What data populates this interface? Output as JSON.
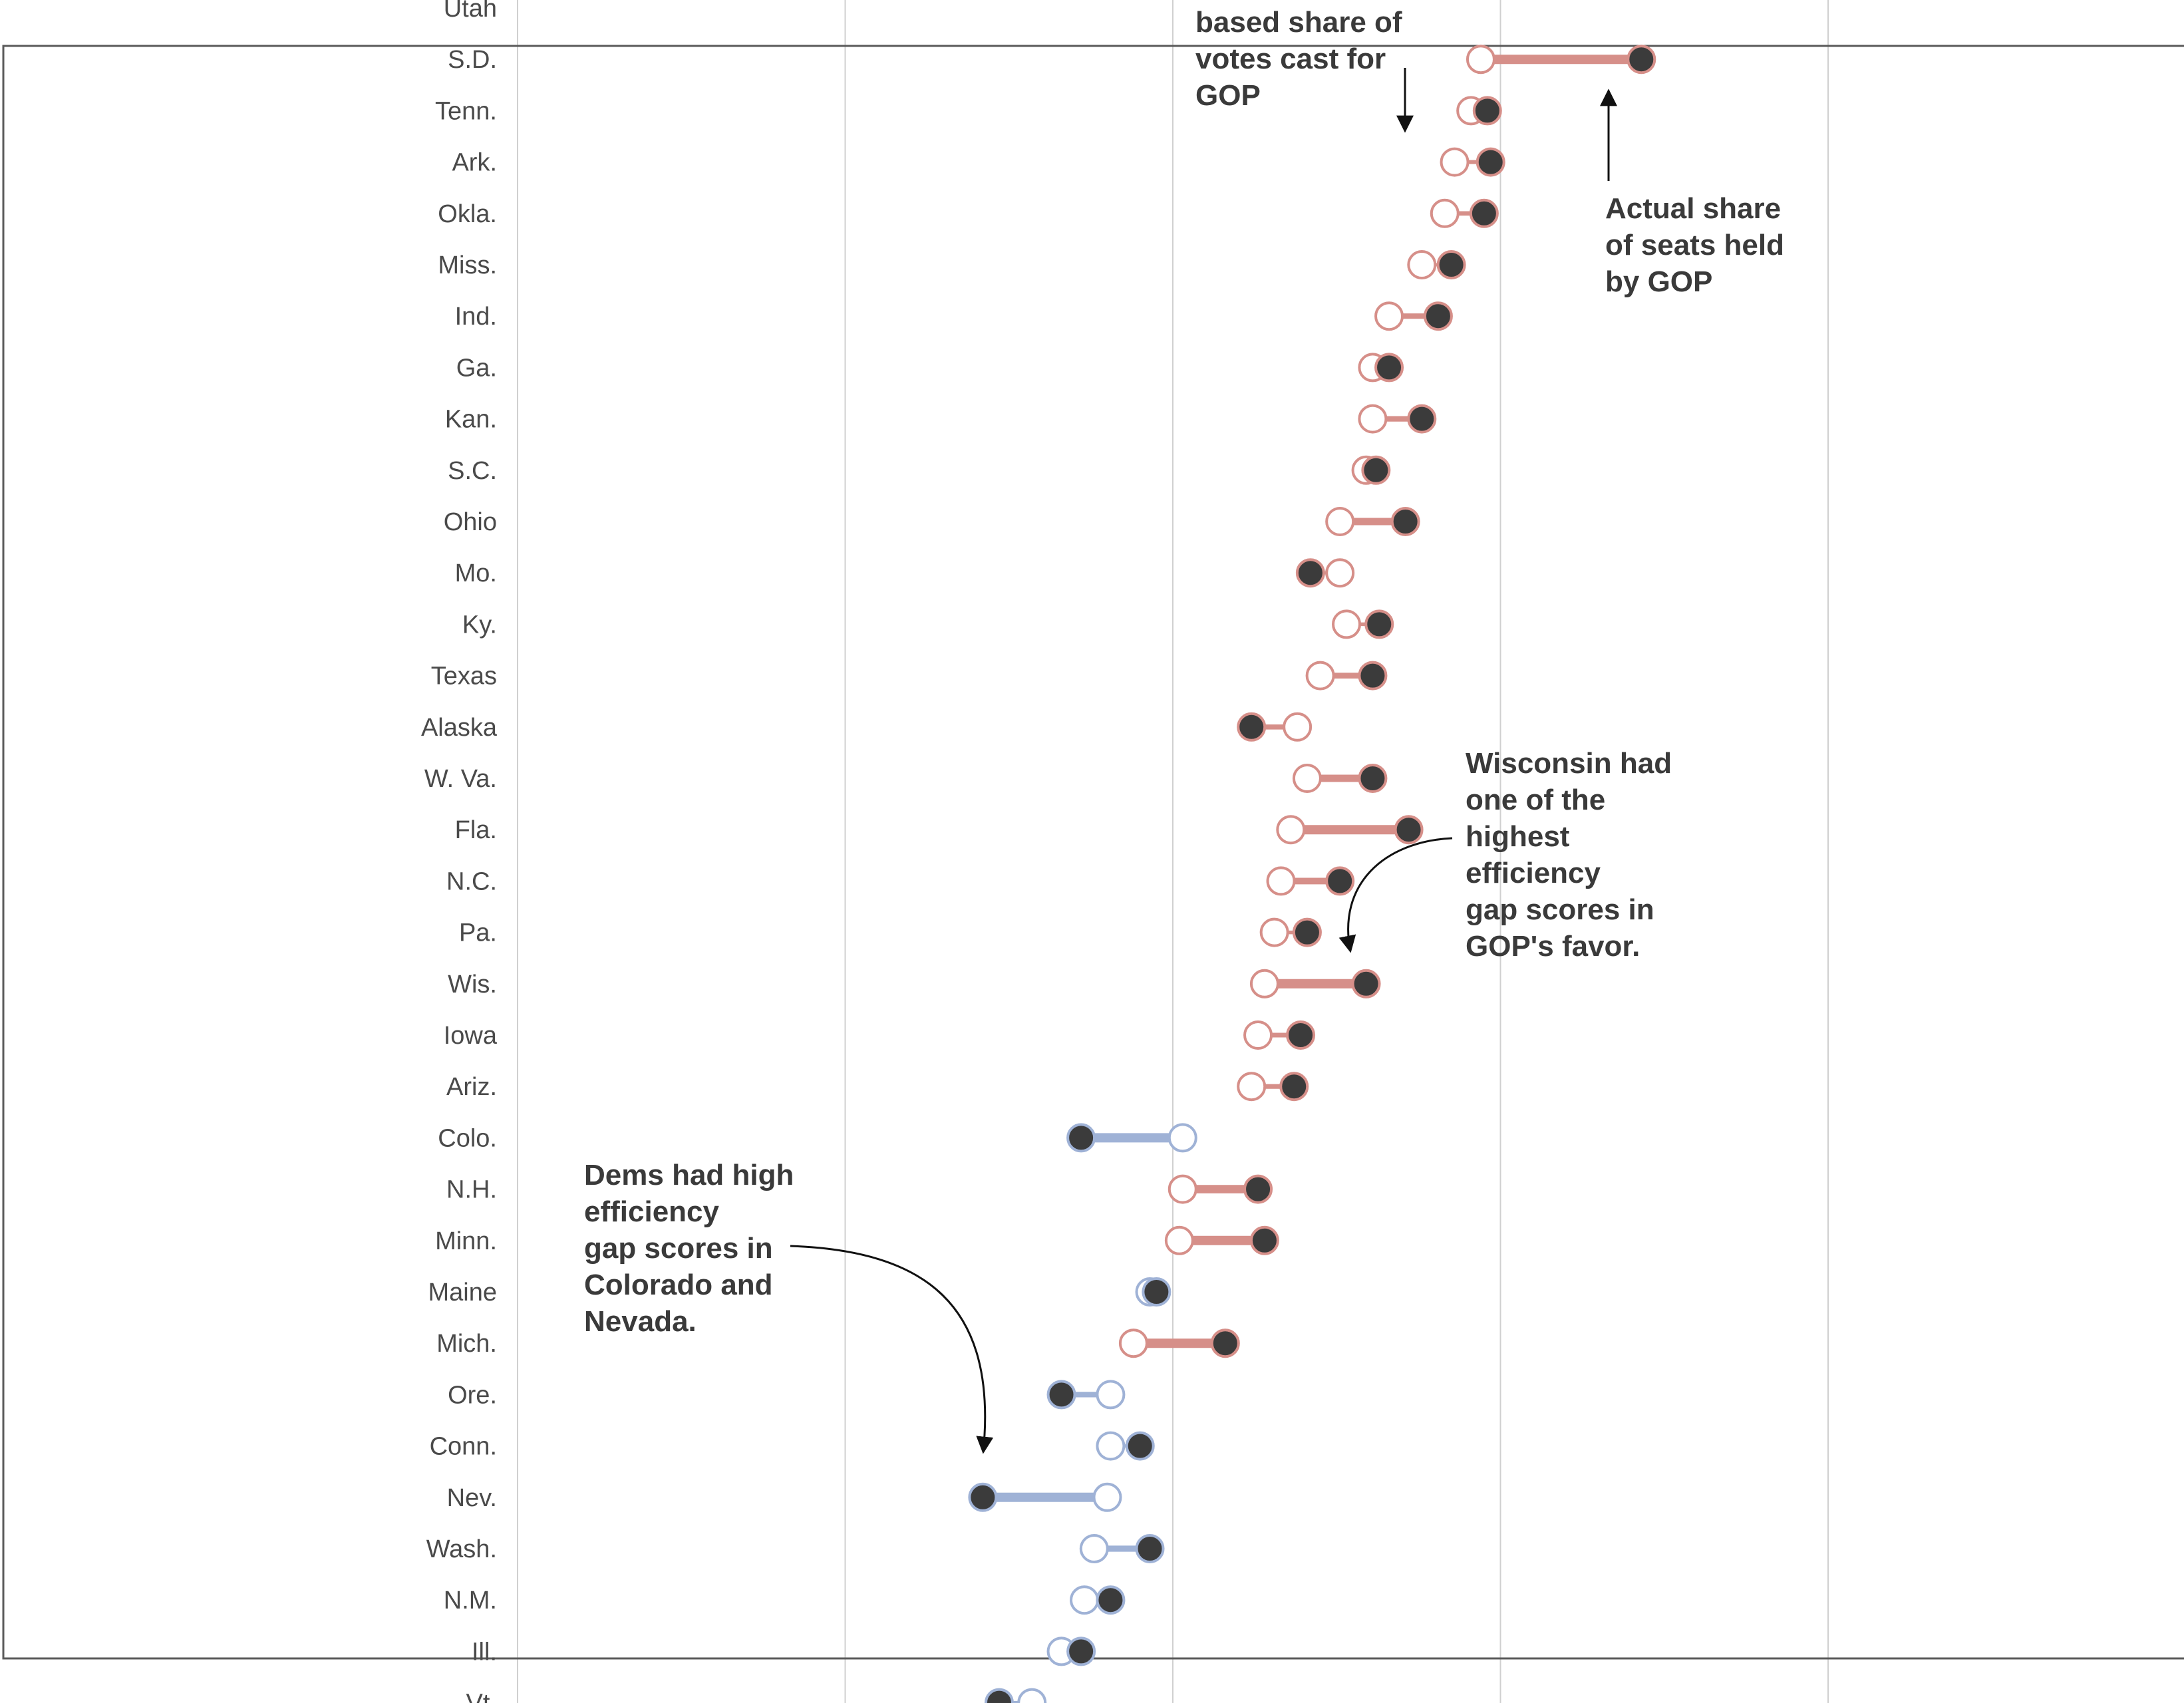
{
  "chart_data": {
    "type": "dot-plot",
    "gridlines_x": [
      0,
      1,
      2,
      3,
      4
    ],
    "xlim": [
      0,
      5
    ],
    "series": [
      {
        "key": "votes"
      },
      {
        "key": "seats"
      }
    ],
    "colors": {
      "gop": "#d68f89",
      "dem": "#9fb2d6",
      "seat_dot": "#3b3b3b",
      "grid": "#d0d0d0",
      "text": "#4a4a4a"
    },
    "rows": [
      {
        "state": "Utah",
        "votes": null,
        "seats": null,
        "party": "gop"
      },
      {
        "state": "S.D.",
        "votes": 2.94,
        "seats": 3.43,
        "party": "gop"
      },
      {
        "state": "Tenn.",
        "votes": 2.91,
        "seats": 2.96,
        "party": "gop"
      },
      {
        "state": "Ark.",
        "votes": 2.86,
        "seats": 2.97,
        "party": "gop"
      },
      {
        "state": "Okla.",
        "votes": 2.83,
        "seats": 2.95,
        "party": "gop"
      },
      {
        "state": "Miss.",
        "votes": 2.76,
        "seats": 2.85,
        "party": "gop"
      },
      {
        "state": "Ind.",
        "votes": 2.66,
        "seats": 2.81,
        "party": "gop"
      },
      {
        "state": "Ga.",
        "votes": 2.61,
        "seats": 2.66,
        "party": "gop"
      },
      {
        "state": "Kan.",
        "votes": 2.61,
        "seats": 2.76,
        "party": "gop"
      },
      {
        "state": "S.C.",
        "votes": 2.59,
        "seats": 2.62,
        "party": "gop"
      },
      {
        "state": "Ohio",
        "votes": 2.51,
        "seats": 2.71,
        "party": "gop"
      },
      {
        "state": "Mo.",
        "votes": 2.51,
        "seats": 2.42,
        "party": "gop"
      },
      {
        "state": "Ky.",
        "votes": 2.53,
        "seats": 2.63,
        "party": "gop"
      },
      {
        "state": "Texas",
        "votes": 2.45,
        "seats": 2.61,
        "party": "gop"
      },
      {
        "state": "Alaska",
        "votes": 2.38,
        "seats": 2.24,
        "party": "gop"
      },
      {
        "state": "W. Va.",
        "votes": 2.41,
        "seats": 2.61,
        "party": "gop"
      },
      {
        "state": "Fla.",
        "votes": 2.36,
        "seats": 2.72,
        "party": "gop"
      },
      {
        "state": "N.C.",
        "votes": 2.33,
        "seats": 2.51,
        "party": "gop"
      },
      {
        "state": "Pa.",
        "votes": 2.31,
        "seats": 2.41,
        "party": "gop"
      },
      {
        "state": "Wis.",
        "votes": 2.28,
        "seats": 2.59,
        "party": "gop"
      },
      {
        "state": "Iowa",
        "votes": 2.26,
        "seats": 2.39,
        "party": "gop"
      },
      {
        "state": "Ariz.",
        "votes": 2.24,
        "seats": 2.37,
        "party": "gop"
      },
      {
        "state": "Colo.",
        "votes": 2.03,
        "seats": 1.72,
        "party": "dem"
      },
      {
        "state": "N.H.",
        "votes": 2.03,
        "seats": 2.26,
        "party": "gop"
      },
      {
        "state": "Minn.",
        "votes": 2.02,
        "seats": 2.28,
        "party": "gop"
      },
      {
        "state": "Maine",
        "votes": 1.93,
        "seats": 1.95,
        "party": "dem"
      },
      {
        "state": "Mich.",
        "votes": 1.88,
        "seats": 2.16,
        "party": "gop"
      },
      {
        "state": "Ore.",
        "votes": 1.81,
        "seats": 1.66,
        "party": "dem"
      },
      {
        "state": "Conn.",
        "votes": 1.81,
        "seats": 1.9,
        "party": "dem"
      },
      {
        "state": "Nev.",
        "votes": 1.8,
        "seats": 1.42,
        "party": "dem"
      },
      {
        "state": "Wash.",
        "votes": 1.76,
        "seats": 1.93,
        "party": "dem"
      },
      {
        "state": "N.M.",
        "votes": 1.73,
        "seats": 1.81,
        "party": "dem"
      },
      {
        "state": "Ill.",
        "votes": 1.66,
        "seats": 1.72,
        "party": "dem"
      },
      {
        "state": "Vt.",
        "votes": 1.57,
        "seats": 1.47,
        "party": "dem"
      }
    ]
  },
  "annotations": {
    "votes_note": {
      "lines": [
        "based share of",
        "votes cast for",
        "GOP"
      ]
    },
    "seats_note": {
      "lines": [
        "Actual share",
        "of seats held",
        "by GOP"
      ]
    },
    "wisconsin_note": {
      "lines": [
        "Wisconsin had",
        "one of the",
        "highest",
        "efficiency",
        "gap scores in",
        "GOP's favor."
      ]
    },
    "dems_note": {
      "lines": [
        "Dems had high",
        "efficiency",
        "gap scores in",
        "Colorado and",
        "Nevada."
      ]
    }
  }
}
